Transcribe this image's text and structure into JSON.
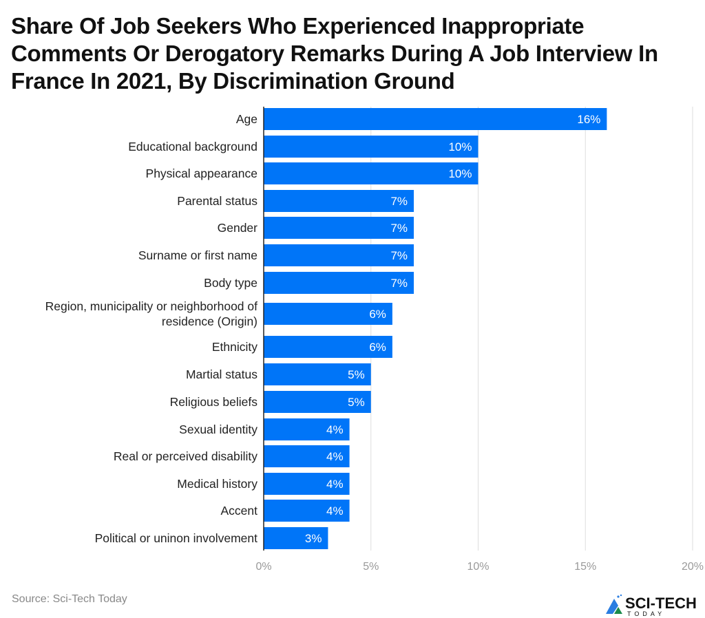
{
  "title": "Share Of Job Seekers Who Experienced Inappropriate Comments Or Derogatory Remarks During A Job Interview In France In 2021, By Discrimination Ground",
  "source": "Source: Sci-Tech Today",
  "logo": {
    "text": "SCI-TECH",
    "subtext": "TODAY"
  },
  "colors": {
    "bar": "#0075F8",
    "grid": "#dddddd",
    "tick": "#999999"
  },
  "chart_data": {
    "type": "bar",
    "orientation": "horizontal",
    "title": "Share Of Job Seekers Who Experienced Inappropriate Comments Or Derogatory Remarks During A Job Interview In France In 2021, By Discrimination Ground",
    "categories": [
      [
        "Age"
      ],
      [
        "Educational background"
      ],
      [
        "Physical appearance"
      ],
      [
        "Parental status"
      ],
      [
        "Gender"
      ],
      [
        "Surname or first name"
      ],
      [
        "Body type"
      ],
      [
        "Region, municipality or neighborhood of",
        "residence (Origin)"
      ],
      [
        "Ethnicity"
      ],
      [
        "Martial status"
      ],
      [
        "Religious beliefs"
      ],
      [
        "Sexual identity"
      ],
      [
        "Real or perceived disability"
      ],
      [
        "Medical history"
      ],
      [
        "Accent"
      ],
      [
        "Political or uninon involvement"
      ]
    ],
    "values": [
      16,
      10,
      10,
      7,
      7,
      7,
      7,
      6,
      6,
      5,
      5,
      4,
      4,
      4,
      4,
      3
    ],
    "data_labels": [
      "16%",
      "10%",
      "10%",
      "7%",
      "7%",
      "7%",
      "7%",
      "6%",
      "6%",
      "5%",
      "5%",
      "4%",
      "4%",
      "4%",
      "4%",
      "3%"
    ],
    "xlim": [
      0,
      20
    ],
    "xticks": [
      0,
      5,
      10,
      15,
      20
    ],
    "xtick_labels": [
      "0%",
      "5%",
      "10%",
      "15%",
      "20%"
    ],
    "grid": true,
    "xlabel": "",
    "ylabel": ""
  }
}
